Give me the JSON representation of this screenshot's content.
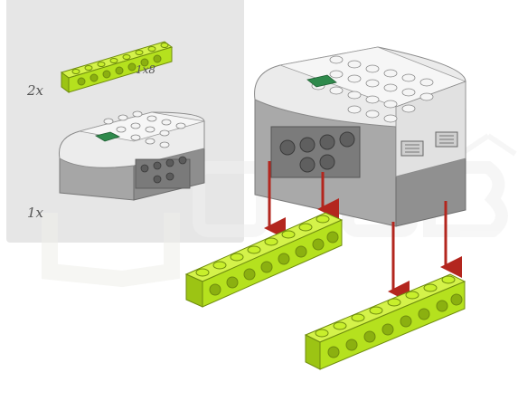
{
  "parts_list": [
    {
      "part": "lime-technic-beam",
      "quantity": "2x",
      "size": "1x8"
    },
    {
      "part": "smarthub",
      "quantity": "1x"
    }
  ],
  "colors": {
    "lime": "#b5e11e",
    "lime_dark": "#8bb010",
    "hub_white": "#e9e9e9",
    "hub_grey": "#9d9d9d",
    "arrow": "#b3261e",
    "panel": "#e6e6e6",
    "watermark": "#f3f3f3"
  },
  "watermark_logo": "watermark-logo"
}
